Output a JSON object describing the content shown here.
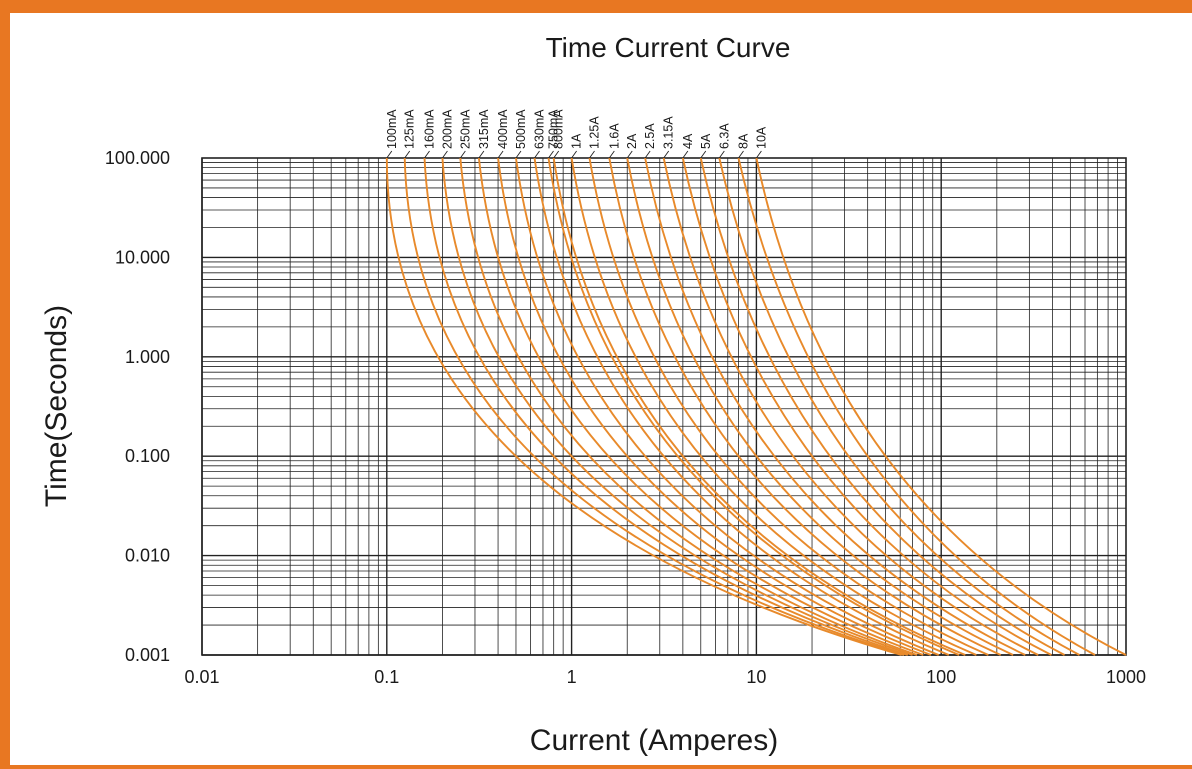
{
  "chart_data": {
    "type": "line",
    "title": "Time Current Curve",
    "xlabel": "Current (Amperes)",
    "ylabel": "Time(Seconds)",
    "x_scale": "log",
    "y_scale": "log",
    "xlim": [
      0.01,
      1000
    ],
    "ylim": [
      0.001,
      100
    ],
    "x_ticks": [
      "0.01",
      "0.1",
      "1",
      "10",
      "100",
      "1000"
    ],
    "y_ticks": [
      "0.001",
      "0.010",
      "0.100",
      "1.000",
      "10.000",
      "100.000"
    ],
    "grid": true,
    "series_color": "#E88A2B",
    "grid_color": "#222222",
    "frame_color": "#E87722",
    "series": [
      {
        "name": "100mA",
        "x": [
          0.1,
          0.5,
          61
        ],
        "y": [
          100,
          0.1,
          0.001
        ]
      },
      {
        "name": "125mA",
        "x": [
          0.125,
          0.625,
          63
        ],
        "y": [
          100,
          0.1,
          0.001
        ]
      },
      {
        "name": "160mA",
        "x": [
          0.16,
          0.8,
          66
        ],
        "y": [
          100,
          0.1,
          0.001
        ]
      },
      {
        "name": "200mA",
        "x": [
          0.2,
          1.0,
          70
        ],
        "y": [
          100,
          0.1,
          0.001
        ]
      },
      {
        "name": "250mA",
        "x": [
          0.25,
          1.25,
          74
        ],
        "y": [
          100,
          0.1,
          0.001
        ]
      },
      {
        "name": "315mA",
        "x": [
          0.315,
          1.58,
          80
        ],
        "y": [
          100,
          0.1,
          0.001
        ]
      },
      {
        "name": "400mA",
        "x": [
          0.4,
          2.0,
          88
        ],
        "y": [
          100,
          0.1,
          0.001
        ]
      },
      {
        "name": "500mA",
        "x": [
          0.5,
          2.5,
          97
        ],
        "y": [
          100,
          0.1,
          0.001
        ]
      },
      {
        "name": "630mA",
        "x": [
          0.63,
          3.15,
          110
        ],
        "y": [
          100,
          0.1,
          0.001
        ]
      },
      {
        "name": "750mA",
        "x": [
          0.75,
          3.75,
          125
        ],
        "y": [
          100,
          0.1,
          0.001
        ]
      },
      {
        "name": "800mA",
        "x": [
          0.8,
          4.0,
          135
        ],
        "y": [
          100,
          0.1,
          0.001
        ]
      },
      {
        "name": "1A",
        "x": [
          1.0,
          5.0,
          155
        ],
        "y": [
          100,
          0.1,
          0.001
        ]
      },
      {
        "name": "1.25A",
        "x": [
          1.25,
          6.25,
          180
        ],
        "y": [
          100,
          0.1,
          0.001
        ]
      },
      {
        "name": "1.6A",
        "x": [
          1.6,
          8.0,
          210
        ],
        "y": [
          100,
          0.1,
          0.001
        ]
      },
      {
        "name": "2A",
        "x": [
          2.0,
          10.0,
          245
        ],
        "y": [
          100,
          0.1,
          0.001
        ]
      },
      {
        "name": "2.5A",
        "x": [
          2.5,
          12.5,
          285
        ],
        "y": [
          100,
          0.1,
          0.001
        ]
      },
      {
        "name": "3.15A",
        "x": [
          3.15,
          15.8,
          335
        ],
        "y": [
          100,
          0.1,
          0.001
        ]
      },
      {
        "name": "4A",
        "x": [
          4.0,
          20.0,
          395
        ],
        "y": [
          100,
          0.1,
          0.001
        ]
      },
      {
        "name": "5A",
        "x": [
          5.0,
          25.0,
          465
        ],
        "y": [
          100,
          0.1,
          0.001
        ]
      },
      {
        "name": "6.3A",
        "x": [
          6.3,
          31.5,
          560
        ],
        "y": [
          100,
          0.1,
          0.001
        ]
      },
      {
        "name": "8A",
        "x": [
          8.0,
          40.0,
          680
        ],
        "y": [
          100,
          0.1,
          0.001
        ]
      },
      {
        "name": "10A",
        "x": [
          10.0,
          50.0,
          1000
        ],
        "y": [
          100,
          0.1,
          0.001
        ]
      }
    ]
  }
}
